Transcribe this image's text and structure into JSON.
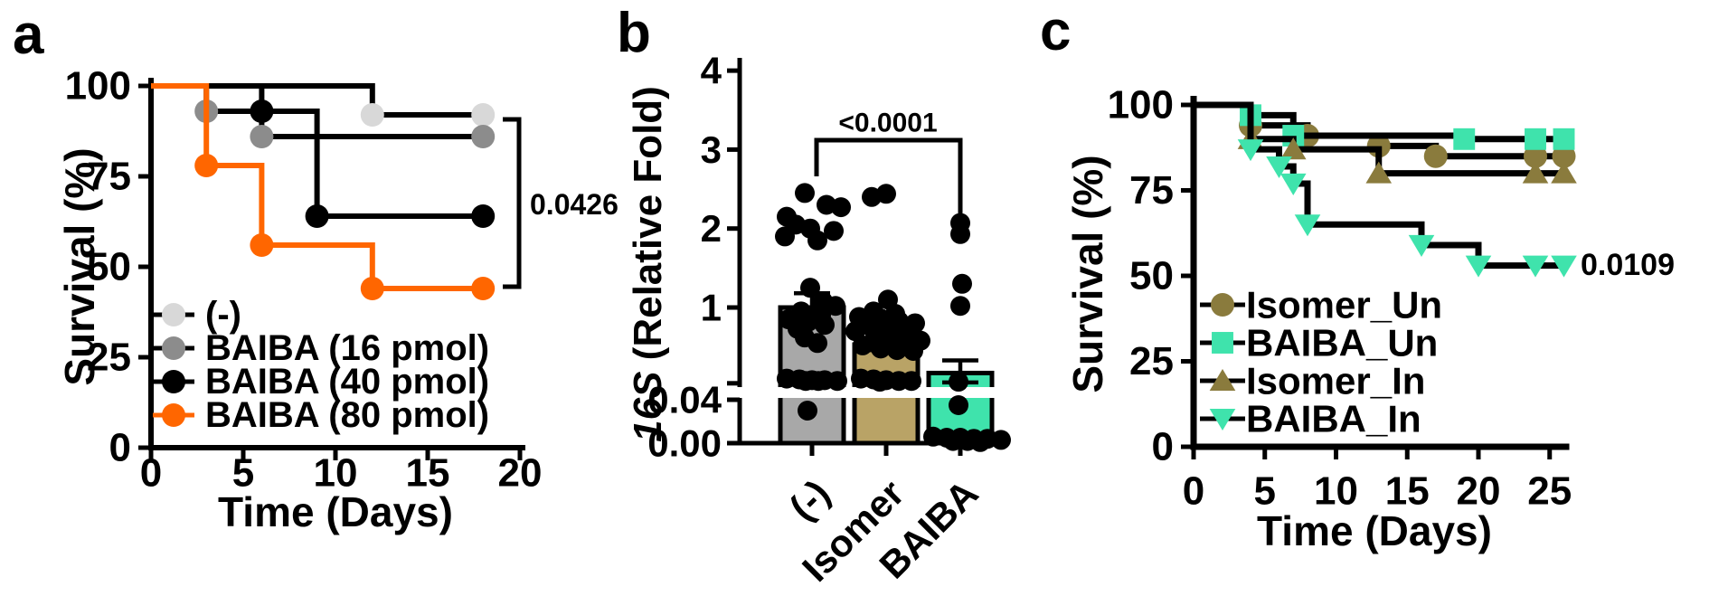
{
  "figure": {
    "background": "#ffffff",
    "axis_color": "#000000"
  },
  "chart_data": [
    {
      "type": "line",
      "subtype": "kaplan_meier_step",
      "panel_label": "a",
      "xlabel": "Time (Days)",
      "ylabel": "Survival (%)",
      "xticks": [
        0,
        5,
        10,
        15,
        20
      ],
      "yticks": [
        0,
        25,
        50,
        75,
        100
      ],
      "xlim": [
        0,
        20
      ],
      "ylim": [
        0,
        100
      ],
      "pvalue": "0.0426",
      "legend_position": "inside-lower-left",
      "grid": false,
      "series": [
        {
          "name": "(-)",
          "marker": "circle",
          "marker_color": "#D8D8D8",
          "line_color": "#000000",
          "path": [
            [
              0,
              100
            ],
            [
              12,
              100
            ],
            [
              12,
              92
            ],
            [
              18,
              92
            ]
          ],
          "markers": [
            [
              12,
              92
            ],
            [
              18,
              92
            ]
          ]
        },
        {
          "name": "BAIBA (16 pmol)",
          "marker": "circle",
          "marker_color": "#8C8C8C",
          "line_color": "#000000",
          "path": [
            [
              0,
              100
            ],
            [
              3,
              100
            ],
            [
              3,
              93
            ],
            [
              6,
              93
            ],
            [
              6,
              86
            ],
            [
              18,
              86
            ]
          ],
          "markers": [
            [
              3,
              93
            ],
            [
              6,
              86
            ],
            [
              18,
              86
            ]
          ]
        },
        {
          "name": "BAIBA (40 pmol)",
          "marker": "circle",
          "marker_color": "#000000",
          "line_color": "#000000",
          "path": [
            [
              0,
              100
            ],
            [
              6,
              100
            ],
            [
              6,
              93
            ],
            [
              9,
              93
            ],
            [
              9,
              64
            ],
            [
              18,
              64
            ]
          ],
          "markers": [
            [
              6,
              93
            ],
            [
              9,
              64
            ],
            [
              18,
              64
            ]
          ]
        },
        {
          "name": "BAIBA (80 pmol)",
          "marker": "circle",
          "marker_color": "#FF6600",
          "line_color": "#FF6600",
          "path": [
            [
              0,
              100
            ],
            [
              3,
              100
            ],
            [
              3,
              78
            ],
            [
              6,
              78
            ],
            [
              6,
              56
            ],
            [
              12,
              56
            ],
            [
              12,
              44
            ],
            [
              18,
              44
            ]
          ],
          "markers": [
            [
              3,
              78
            ],
            [
              6,
              56
            ],
            [
              12,
              44
            ],
            [
              18,
              44
            ]
          ]
        }
      ]
    },
    {
      "type": "bar",
      "subtype": "bar_scatter_broken_axis",
      "panel_label": "b",
      "ylabel_italic": "16S",
      "ylabel": " (Relative Fold)",
      "pvalue": "<0.0001",
      "grid": false,
      "axis_break": {
        "lower_tick_labels": [
          "0.00",
          "0.04"
        ],
        "lower_tick_values": [
          0,
          0.04
        ],
        "upper_tick_labels": [
          "1",
          "2",
          "3",
          "4"
        ],
        "upper_tick_values": [
          1,
          2,
          3,
          4
        ]
      },
      "categories": [
        {
          "label": "(-)",
          "bar_color": "#A8A8A8",
          "mean": 1.0,
          "sem": [
            0.83,
            1.18
          ],
          "dots": [
            [
              2.45,
              -8
            ],
            [
              2.3,
              16
            ],
            [
              2.27,
              32
            ],
            [
              2.15,
              -28
            ],
            [
              2.05,
              -18
            ],
            [
              2.0,
              -2
            ],
            [
              1.97,
              24
            ],
            [
              1.9,
              -30
            ],
            [
              1.85,
              6
            ],
            [
              1.25,
              -2
            ],
            [
              1.08,
              12
            ],
            [
              1.02,
              26
            ],
            [
              0.95,
              -12
            ],
            [
              0.9,
              10
            ],
            [
              0.85,
              -26
            ],
            [
              0.82,
              -4
            ],
            [
              0.78,
              14
            ],
            [
              0.73,
              -16
            ],
            [
              0.62,
              -8
            ],
            [
              0.55,
              6
            ],
            [
              0.1,
              -28
            ],
            [
              0.09,
              -14
            ],
            [
              0.08,
              0
            ],
            [
              0.08,
              14
            ],
            [
              0.07,
              28
            ],
            [
              0.07,
              -7
            ],
            [
              0.07,
              7
            ]
          ],
          "dots_lower": [
            [
              0.03,
              -5
            ]
          ]
        },
        {
          "label": "Isomer",
          "bar_color": "#B9A366",
          "mean": 0.53,
          "sem": [
            0.46,
            0.6
          ],
          "dots": [
            [
              2.44,
              0
            ],
            [
              2.4,
              -16
            ],
            [
              1.1,
              2
            ],
            [
              0.95,
              -14
            ],
            [
              0.92,
              10
            ],
            [
              0.88,
              -30
            ],
            [
              0.86,
              -6
            ],
            [
              0.83,
              14
            ],
            [
              0.8,
              32
            ],
            [
              0.78,
              -22
            ],
            [
              0.75,
              0
            ],
            [
              0.72,
              20
            ],
            [
              0.7,
              -34
            ],
            [
              0.65,
              -12
            ],
            [
              0.62,
              6
            ],
            [
              0.6,
              24
            ],
            [
              0.58,
              38
            ],
            [
              0.52,
              -26
            ],
            [
              0.48,
              -6
            ],
            [
              0.46,
              12
            ],
            [
              0.45,
              30
            ],
            [
              0.1,
              -28
            ],
            [
              0.09,
              -14
            ],
            [
              0.08,
              0
            ],
            [
              0.07,
              14
            ],
            [
              0.07,
              28
            ],
            [
              0.06,
              -7
            ]
          ],
          "dots_lower": []
        },
        {
          "label": "BAIBA",
          "bar_color": "#3FE3AC",
          "mean": 0.17,
          "sem": [
            0.05,
            0.33
          ],
          "dots": [
            [
              2.07,
              0
            ],
            [
              1.93,
              0
            ],
            [
              1.3,
              2
            ],
            [
              1.02,
              0
            ],
            [
              0.06,
              -2
            ]
          ],
          "dots_lower": [
            [
              0.035,
              -2
            ],
            [
              0.006,
              -30
            ],
            [
              0.005,
              -15
            ],
            [
              0.005,
              0
            ],
            [
              0.004,
              15
            ],
            [
              0.004,
              30
            ],
            [
              0.003,
              45
            ],
            [
              0.002,
              -8
            ],
            [
              0.002,
              8
            ],
            [
              0.001,
              22
            ]
          ]
        }
      ]
    },
    {
      "type": "line",
      "subtype": "kaplan_meier_step",
      "panel_label": "c",
      "xlabel": "Time (Days)",
      "ylabel": "Survival (%)",
      "xticks": [
        0,
        5,
        10,
        15,
        20,
        25
      ],
      "yticks": [
        0,
        25,
        50,
        75,
        100
      ],
      "xlim": [
        0,
        26
      ],
      "ylim": [
        0,
        100
      ],
      "pvalue": "0.0109",
      "legend_position": "inside-lower-left",
      "grid": false,
      "series": [
        {
          "name": "Isomer_Un",
          "marker": "circle",
          "marker_color": "#8A7B3D",
          "line_color": "#000000",
          "path": [
            [
              0,
              100
            ],
            [
              4,
              100
            ],
            [
              4,
              94
            ],
            [
              8,
              94
            ],
            [
              8,
              91
            ],
            [
              13,
              91
            ],
            [
              13,
              88
            ],
            [
              17,
              88
            ],
            [
              17,
              85
            ],
            [
              26,
              85
            ]
          ],
          "markers": [
            [
              4,
              94
            ],
            [
              8,
              91
            ],
            [
              13,
              88
            ],
            [
              17,
              85
            ],
            [
              24,
              85
            ],
            [
              26,
              85
            ]
          ]
        },
        {
          "name": "BAIBA_Un",
          "marker": "square",
          "marker_color": "#3FE3AC",
          "line_color": "#000000",
          "path": [
            [
              0,
              100
            ],
            [
              4,
              100
            ],
            [
              4,
              97
            ],
            [
              7,
              97
            ],
            [
              7,
              91
            ],
            [
              19,
              91
            ],
            [
              19,
              90
            ],
            [
              26,
              90
            ]
          ],
          "markers": [
            [
              4,
              97
            ],
            [
              7,
              91
            ],
            [
              19,
              90
            ],
            [
              24,
              90
            ],
            [
              26,
              90
            ]
          ]
        },
        {
          "name": "Isomer_In",
          "marker": "triangle-up",
          "marker_color": "#8A7B3D",
          "line_color": "#000000",
          "path": [
            [
              0,
              100
            ],
            [
              4,
              100
            ],
            [
              4,
              90
            ],
            [
              7,
              90
            ],
            [
              7,
              87
            ],
            [
              13,
              87
            ],
            [
              13,
              80
            ],
            [
              26,
              80
            ]
          ],
          "markers": [
            [
              4,
              90
            ],
            [
              7,
              87
            ],
            [
              13,
              80
            ],
            [
              24,
              80
            ],
            [
              26,
              80
            ]
          ]
        },
        {
          "name": "BAIBA_In",
          "marker": "triangle-down",
          "marker_color": "#3FE3AC",
          "line_color": "#000000",
          "path": [
            [
              0,
              100
            ],
            [
              4,
              100
            ],
            [
              4,
              87
            ],
            [
              6,
              87
            ],
            [
              6,
              82
            ],
            [
              7,
              82
            ],
            [
              7,
              77
            ],
            [
              8,
              77
            ],
            [
              8,
              65
            ],
            [
              16,
              65
            ],
            [
              16,
              59
            ],
            [
              20,
              59
            ],
            [
              20,
              53
            ],
            [
              26,
              53
            ]
          ],
          "markers": [
            [
              4,
              87
            ],
            [
              6,
              82
            ],
            [
              7,
              77
            ],
            [
              8,
              65
            ],
            [
              16,
              59
            ],
            [
              20,
              53
            ],
            [
              24,
              53
            ],
            [
              26,
              53
            ]
          ]
        }
      ]
    }
  ]
}
